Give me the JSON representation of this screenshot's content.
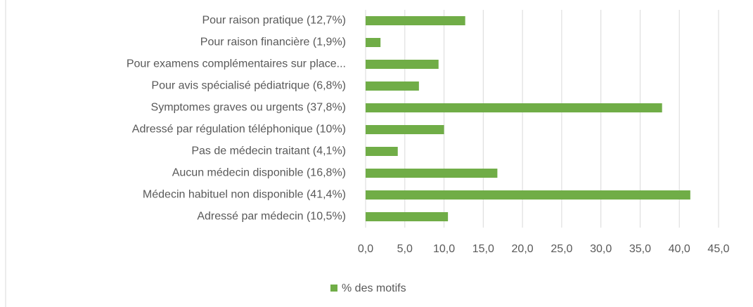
{
  "chart_data": {
    "type": "bar",
    "orientation": "horizontal",
    "categories": [
      "Pour raison pratique (12,7%)",
      "Pour raison financière (1,9%)",
      "Pour examens complémentaires sur place...",
      "Pour avis spécialisé pédiatrique (6,8%)",
      "Symptomes graves ou urgents (37,8%)",
      "Adressé par régulation téléphonique (10%)",
      "Pas de médecin traitant (4,1%)",
      "Aucun médecin disponible (16,8%)",
      "Médecin habituel non disponible (41,4%)",
      "Adressé par médecin (10,5%)"
    ],
    "series": [
      {
        "name": "% des motifs",
        "color": "#70ad47",
        "values": [
          12.7,
          1.9,
          9.3,
          6.8,
          37.8,
          10,
          4.1,
          16.8,
          41.4,
          10.5
        ]
      }
    ],
    "xlim": [
      0,
      45
    ],
    "xticks": [
      {
        "value": 0,
        "label": "0,0"
      },
      {
        "value": 5,
        "label": "5,0"
      },
      {
        "value": 10,
        "label": "10,0"
      },
      {
        "value": 15,
        "label": "15,0"
      },
      {
        "value": 20,
        "label": "20,0"
      },
      {
        "value": 25,
        "label": "25,0"
      },
      {
        "value": 30,
        "label": "30,0"
      },
      {
        "value": 35,
        "label": "35,0"
      },
      {
        "value": 40,
        "label": "40,0"
      },
      {
        "value": 45,
        "label": "45,0"
      }
    ],
    "grid": true,
    "legend": "bottom"
  }
}
